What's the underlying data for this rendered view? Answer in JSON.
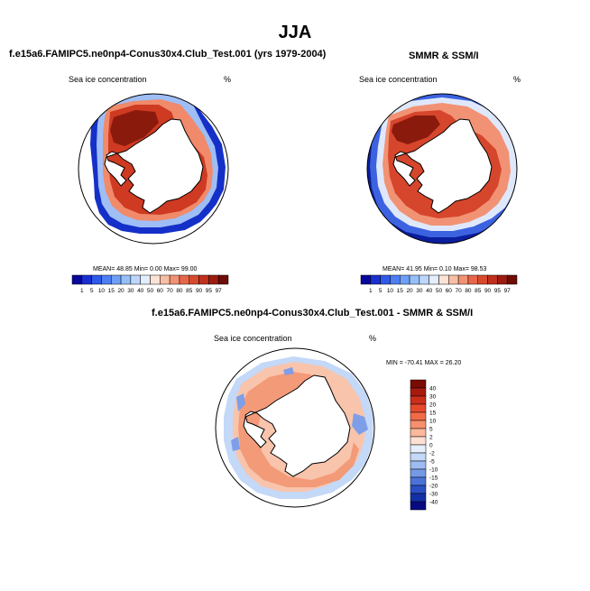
{
  "figure": {
    "season": "JJA",
    "left_title": "f.e15a6.FAMIPC5.ne0np4-Conus30x4.Club_Test.001 (yrs 1979-2004)",
    "right_title": "SMMR & SSM/I",
    "diff_title": "f.e15a6.FAMIPC5.ne0np4-Conus30x4.Club_Test.001 - SMMR & SSM/I"
  },
  "panels": {
    "model": {
      "variable": "Sea ice concentration",
      "units": "%",
      "stats": "MEAN=  48.85  Min=   0.00  Max=  99.00"
    },
    "obs": {
      "variable": "Sea ice concentration",
      "units": "%",
      "stats": "MEAN=  41.95  Min=   0.10  Max=  98.53"
    },
    "diff": {
      "variable": "Sea ice concentration",
      "units": "%",
      "stats": "MIN = -70.41  MAX =  26.20"
    }
  },
  "colorbar_abs": {
    "levels": [
      "1",
      "5",
      "10",
      "15",
      "20",
      "30",
      "40",
      "50",
      "60",
      "70",
      "80",
      "85",
      "90",
      "95",
      "97"
    ],
    "colors": [
      "#08089a",
      "#1a2fd0",
      "#2f59e8",
      "#4d7ef2",
      "#6f9ff6",
      "#95bff9",
      "#bcd7fb",
      "#e2eefb",
      "#fbe3d6",
      "#f7bea5",
      "#f29274",
      "#e8674a",
      "#d84a2e",
      "#c0301c",
      "#9c1c10",
      "#6e0c06"
    ]
  },
  "colorbar_diff": {
    "levels": [
      "40",
      "30",
      "20",
      "15",
      "10",
      "5",
      "2",
      "0",
      "-2",
      "-5",
      "-10",
      "-15",
      "-20",
      "-30",
      "-40"
    ],
    "colors": [
      "#7a0a04",
      "#a81a0e",
      "#cc2e1a",
      "#e64a2c",
      "#f26a48",
      "#f7906e",
      "#fab89c",
      "#fde0d2",
      "#e6eefb",
      "#c4d8f7",
      "#9ebcf1",
      "#7599e6",
      "#4c72d8",
      "#2a4ec4",
      "#1430a6",
      "#080a82"
    ]
  },
  "chart_data": {
    "type": "heatmap",
    "title": "JJA",
    "description_series": [
      {
        "name": "Model sea ice concentration (%)",
        "mean": 48.85,
        "min": 0.0,
        "max": 99.0
      },
      {
        "name": "SMMR & SSM/I sea ice concentration (%)",
        "mean": 41.95,
        "min": 0.1,
        "max": 98.53
      },
      {
        "name": "Model - Obs difference (%)",
        "min": -70.41,
        "max": 26.2
      }
    ]
  }
}
